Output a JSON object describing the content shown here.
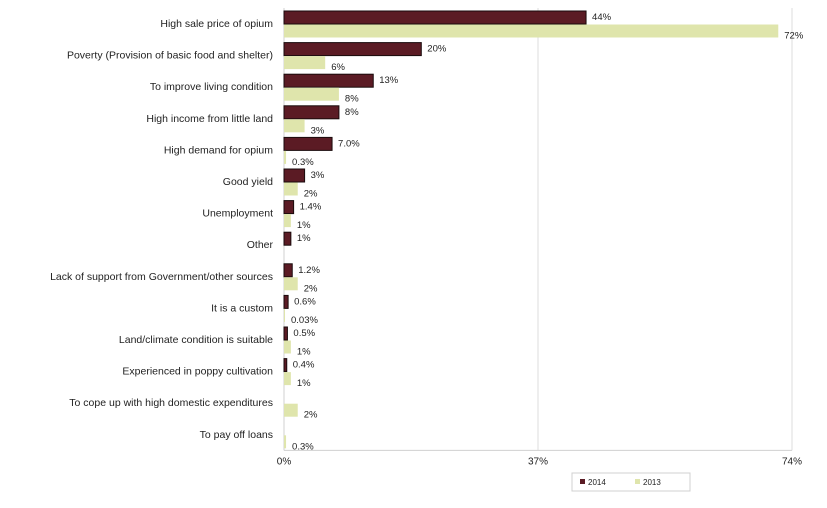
{
  "chart_data": {
    "type": "bar",
    "orientation": "horizontal",
    "title": "",
    "xlabel": "",
    "ylabel": "",
    "xlim": [
      0,
      74
    ],
    "x_ticks": [
      "0%",
      "37%",
      "74%"
    ],
    "x_tick_values": [
      0,
      37,
      74
    ],
    "grid": true,
    "legend_position": "bottom-right",
    "categories": [
      "High sale price of opium",
      "Poverty (Provision of basic food and shelter)",
      "To improve living condition",
      "High income from little land",
      "High demand for opium",
      "Good yield",
      "Unemployment",
      "Other",
      "Lack of support from Government/other sources",
      "It is a custom",
      "Land/climate condition is suitable",
      "Experienced in poppy cultivation",
      "To cope up with high domestic expenditures",
      "To pay off loans"
    ],
    "series": [
      {
        "name": "2014",
        "color": "#5b1b24",
        "values": [
          44,
          20,
          13,
          8,
          7.0,
          3,
          1.4,
          1,
          1.2,
          0.6,
          0.5,
          0.4,
          null,
          null
        ],
        "labels": [
          "44%",
          "20%",
          "13%",
          "8%",
          "7.0%",
          "3%",
          "1.4%",
          "1%",
          "1.2%",
          "0.6%",
          "0.5%",
          "0.4%",
          null,
          null
        ]
      },
      {
        "name": "2013",
        "color": "#dfe5ac",
        "values": [
          72,
          6,
          8,
          3,
          0.3,
          2,
          1,
          null,
          2,
          0.03,
          1,
          1,
          2,
          0.3
        ],
        "labels": [
          "72%",
          "6%",
          "8%",
          "3%",
          "0.3%",
          "2%",
          "1%",
          null,
          "2%",
          "0.03%",
          "1%",
          "1%",
          "2%",
          "0.3%"
        ]
      }
    ]
  }
}
